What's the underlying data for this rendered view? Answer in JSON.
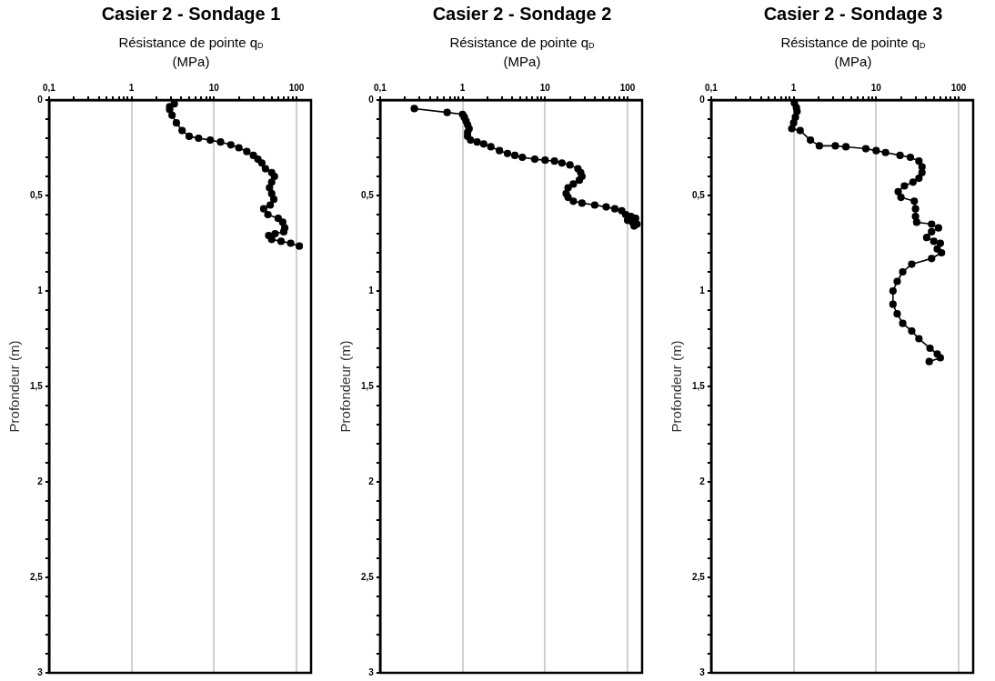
{
  "chart_data": [
    {
      "type": "line",
      "title": "Casier 2 - Sondage 1",
      "xlabel": "Résistance de pointe q$_{D}$ (MPa)",
      "ylabel": "Profondeur (m)",
      "log": "x",
      "grid": "x",
      "marker": "circle",
      "line_style": "solid",
      "legend": false,
      "xlim": [
        0.1,
        150
      ],
      "ylim": [
        3,
        0
      ],
      "xticks": [
        {
          "value": 0.1,
          "label": "0,1"
        },
        {
          "value": 0.2,
          "label": null
        },
        {
          "value": 0.3,
          "label": null
        },
        {
          "value": 0.4,
          "label": null
        },
        {
          "value": 0.5,
          "label": null
        },
        {
          "value": 0.6,
          "label": null
        },
        {
          "value": 0.7,
          "label": null
        },
        {
          "value": 0.8,
          "label": null
        },
        {
          "value": 0.9,
          "label": null
        },
        1,
        {
          "value": 2,
          "label": null
        },
        {
          "value": 3,
          "label": null
        },
        {
          "value": 4,
          "label": null
        },
        {
          "value": 5,
          "label": null
        },
        {
          "value": 6,
          "label": null
        },
        {
          "value": 7,
          "label": null
        },
        {
          "value": 8,
          "label": null
        },
        {
          "value": 9,
          "label": null
        },
        10,
        {
          "value": 20,
          "label": null
        },
        {
          "value": 30,
          "label": null
        },
        {
          "value": 40,
          "label": null
        },
        {
          "value": 50,
          "label": null
        },
        {
          "value": 60,
          "label": null
        },
        {
          "value": 70,
          "label": null
        },
        {
          "value": 80,
          "label": null
        },
        {
          "value": 90,
          "label": null
        },
        100
      ],
      "yticks": [
        0,
        {
          "value": 0.1,
          "label": null
        },
        {
          "value": 0.2,
          "label": null
        },
        {
          "value": 0.3,
          "label": null
        },
        {
          "value": 0.4,
          "label": null
        },
        {
          "value": 0.5,
          "label": "0,5"
        },
        {
          "value": 0.6,
          "label": null
        },
        {
          "value": 0.7,
          "label": null
        },
        {
          "value": 0.8,
          "label": null
        },
        {
          "value": 0.9,
          "label": null
        },
        1,
        {
          "value": 1.1,
          "label": null
        },
        {
          "value": 1.2,
          "label": null
        },
        {
          "value": 1.3,
          "label": null
        },
        {
          "value": 1.4,
          "label": null
        },
        {
          "value": 1.5,
          "label": "1,5"
        },
        {
          "value": 1.6,
          "label": null
        },
        {
          "value": 1.7,
          "label": null
        },
        {
          "value": 1.8,
          "label": null
        },
        {
          "value": 1.9,
          "label": null
        },
        2,
        {
          "value": 2.1,
          "label": null
        },
        {
          "value": 2.2,
          "label": null
        },
        {
          "value": 2.3,
          "label": null
        },
        {
          "value": 2.4,
          "label": null
        },
        {
          "value": 2.5,
          "label": "2,5"
        },
        {
          "value": 2.6,
          "label": null
        },
        {
          "value": 2.7,
          "label": null
        },
        {
          "value": 2.8,
          "label": null
        },
        {
          "value": 2.9,
          "label": null
        },
        3
      ],
      "series": [
        {
          "color": "#000000",
          "x": [
            3.3,
            2.9,
            2.9,
            3.1,
            3.5,
            4.1,
            5,
            6.5,
            9,
            12,
            16,
            20,
            25,
            30,
            34,
            38,
            42,
            50,
            54,
            50,
            47,
            50,
            53,
            48,
            40,
            45,
            60,
            68,
            72,
            70,
            55,
            46,
            50,
            65,
            85,
            108
          ],
          "values": [
            0.02,
            0.035,
            0.05,
            0.08,
            0.12,
            0.16,
            0.19,
            0.2,
            0.21,
            0.22,
            0.235,
            0.25,
            0.27,
            0.29,
            0.31,
            0.33,
            0.36,
            0.38,
            0.4,
            0.43,
            0.46,
            0.49,
            0.52,
            0.55,
            0.57,
            0.6,
            0.62,
            0.64,
            0.67,
            0.69,
            0.7,
            0.71,
            0.73,
            0.74,
            0.75,
            0.765
          ]
        }
      ]
    },
    {
      "type": "line",
      "title": "Casier 2 - Sondage 2",
      "xlabel": "Résistance de pointe q$_{D}$ (MPa)",
      "ylabel": "Profondeur (m)",
      "log": "x",
      "grid": "x",
      "marker": "circle",
      "line_style": "solid",
      "legend": false,
      "xlim": [
        0.1,
        150
      ],
      "ylim": [
        3,
        0
      ],
      "xticks": [
        {
          "value": 0.1,
          "label": "0,1"
        },
        {
          "value": 0.2,
          "label": null
        },
        {
          "value": 0.3,
          "label": null
        },
        {
          "value": 0.4,
          "label": null
        },
        {
          "value": 0.5,
          "label": null
        },
        {
          "value": 0.6,
          "label": null
        },
        {
          "value": 0.7,
          "label": null
        },
        {
          "value": 0.8,
          "label": null
        },
        {
          "value": 0.9,
          "label": null
        },
        1,
        {
          "value": 2,
          "label": null
        },
        {
          "value": 3,
          "label": null
        },
        {
          "value": 4,
          "label": null
        },
        {
          "value": 5,
          "label": null
        },
        {
          "value": 6,
          "label": null
        },
        {
          "value": 7,
          "label": null
        },
        {
          "value": 8,
          "label": null
        },
        {
          "value": 9,
          "label": null
        },
        10,
        {
          "value": 20,
          "label": null
        },
        {
          "value": 30,
          "label": null
        },
        {
          "value": 40,
          "label": null
        },
        {
          "value": 50,
          "label": null
        },
        {
          "value": 60,
          "label": null
        },
        {
          "value": 70,
          "label": null
        },
        {
          "value": 80,
          "label": null
        },
        {
          "value": 90,
          "label": null
        },
        100
      ],
      "yticks": [
        0,
        {
          "value": 0.1,
          "label": null
        },
        {
          "value": 0.2,
          "label": null
        },
        {
          "value": 0.3,
          "label": null
        },
        {
          "value": 0.4,
          "label": null
        },
        {
          "value": 0.5,
          "label": "0,5"
        },
        {
          "value": 0.6,
          "label": null
        },
        {
          "value": 0.7,
          "label": null
        },
        {
          "value": 0.8,
          "label": null
        },
        {
          "value": 0.9,
          "label": null
        },
        1,
        {
          "value": 1.1,
          "label": null
        },
        {
          "value": 1.2,
          "label": null
        },
        {
          "value": 1.3,
          "label": null
        },
        {
          "value": 1.4,
          "label": null
        },
        {
          "value": 1.5,
          "label": "1,5"
        },
        {
          "value": 1.6,
          "label": null
        },
        {
          "value": 1.7,
          "label": null
        },
        {
          "value": 1.8,
          "label": null
        },
        {
          "value": 1.9,
          "label": null
        },
        2,
        {
          "value": 2.1,
          "label": null
        },
        {
          "value": 2.2,
          "label": null
        },
        {
          "value": 2.3,
          "label": null
        },
        {
          "value": 2.4,
          "label": null
        },
        {
          "value": 2.5,
          "label": "2,5"
        },
        {
          "value": 2.6,
          "label": null
        },
        {
          "value": 2.7,
          "label": null
        },
        {
          "value": 2.8,
          "label": null
        },
        {
          "value": 2.9,
          "label": null
        },
        3
      ],
      "series": [
        {
          "color": "#000000",
          "x": [
            0.26,
            0.65,
            1.0,
            1.05,
            1.1,
            1.15,
            1.2,
            1.15,
            1.15,
            1.25,
            1.5,
            1.8,
            2.2,
            2.8,
            3.5,
            4.3,
            5.3,
            7.5,
            10,
            13,
            16,
            20,
            25,
            27,
            28,
            26,
            22,
            19,
            18,
            19,
            22,
            28,
            40,
            55,
            70,
            85,
            95,
            110,
            125,
            100,
            115,
            130,
            120
          ],
          "values": [
            0.045,
            0.065,
            0.075,
            0.09,
            0.11,
            0.13,
            0.15,
            0.17,
            0.19,
            0.21,
            0.22,
            0.23,
            0.245,
            0.265,
            0.28,
            0.29,
            0.3,
            0.31,
            0.315,
            0.32,
            0.33,
            0.34,
            0.36,
            0.38,
            0.4,
            0.42,
            0.44,
            0.46,
            0.49,
            0.51,
            0.53,
            0.54,
            0.55,
            0.56,
            0.57,
            0.58,
            0.6,
            0.61,
            0.62,
            0.63,
            0.64,
            0.65,
            0.66
          ]
        }
      ]
    },
    {
      "type": "line",
      "title": "Casier 2 - Sondage 3",
      "xlabel": "Résistance de pointe q$_{D}$ (MPa)",
      "ylabel": "Profondeur (m)",
      "log": "x",
      "grid": "x",
      "marker": "circle",
      "line_style": "solid",
      "legend": false,
      "xlim": [
        0.1,
        150
      ],
      "ylim": [
        3,
        0
      ],
      "xticks": [
        {
          "value": 0.1,
          "label": "0,1"
        },
        {
          "value": 0.2,
          "label": null
        },
        {
          "value": 0.3,
          "label": null
        },
        {
          "value": 0.4,
          "label": null
        },
        {
          "value": 0.5,
          "label": null
        },
        {
          "value": 0.6,
          "label": null
        },
        {
          "value": 0.7,
          "label": null
        },
        {
          "value": 0.8,
          "label": null
        },
        {
          "value": 0.9,
          "label": null
        },
        1,
        {
          "value": 2,
          "label": null
        },
        {
          "value": 3,
          "label": null
        },
        {
          "value": 4,
          "label": null
        },
        {
          "value": 5,
          "label": null
        },
        {
          "value": 6,
          "label": null
        },
        {
          "value": 7,
          "label": null
        },
        {
          "value": 8,
          "label": null
        },
        {
          "value": 9,
          "label": null
        },
        10,
        {
          "value": 20,
          "label": null
        },
        {
          "value": 30,
          "label": null
        },
        {
          "value": 40,
          "label": null
        },
        {
          "value": 50,
          "label": null
        },
        {
          "value": 60,
          "label": null
        },
        {
          "value": 70,
          "label": null
        },
        {
          "value": 80,
          "label": null
        },
        {
          "value": 90,
          "label": null
        },
        100
      ],
      "yticks": [
        0,
        {
          "value": 0.1,
          "label": null
        },
        {
          "value": 0.2,
          "label": null
        },
        {
          "value": 0.3,
          "label": null
        },
        {
          "value": 0.4,
          "label": null
        },
        {
          "value": 0.5,
          "label": "0,5"
        },
        {
          "value": 0.6,
          "label": null
        },
        {
          "value": 0.7,
          "label": null
        },
        {
          "value": 0.8,
          "label": null
        },
        {
          "value": 0.9,
          "label": null
        },
        1,
        {
          "value": 1.1,
          "label": null
        },
        {
          "value": 1.2,
          "label": null
        },
        {
          "value": 1.3,
          "label": null
        },
        {
          "value": 1.4,
          "label": null
        },
        {
          "value": 1.5,
          "label": "1,5"
        },
        {
          "value": 1.6,
          "label": null
        },
        {
          "value": 1.7,
          "label": null
        },
        {
          "value": 1.8,
          "label": null
        },
        {
          "value": 1.9,
          "label": null
        },
        2,
        {
          "value": 2.1,
          "label": null
        },
        {
          "value": 2.2,
          "label": null
        },
        {
          "value": 2.3,
          "label": null
        },
        {
          "value": 2.4,
          "label": null
        },
        {
          "value": 2.5,
          "label": "2,5"
        },
        {
          "value": 2.6,
          "label": null
        },
        {
          "value": 2.7,
          "label": null
        },
        {
          "value": 2.8,
          "label": null
        },
        {
          "value": 2.9,
          "label": null
        },
        3
      ],
      "series": [
        {
          "color": "#000000",
          "x": [
            1.02,
            1.08,
            1.1,
            1.05,
            1.0,
            0.95,
            1.2,
            1.6,
            2.05,
            3.2,
            4.3,
            7.5,
            10,
            13,
            19.5,
            26,
            33,
            36,
            36,
            33,
            28,
            22,
            18.5,
            20,
            29,
            30,
            30,
            31,
            47,
            57,
            47,
            41,
            50,
            60,
            55,
            62,
            47,
            27,
            21,
            18,
            16,
            16,
            18,
            21,
            27,
            33,
            45,
            55,
            60,
            44
          ],
          "values": [
            0.015,
            0.04,
            0.06,
            0.09,
            0.12,
            0.15,
            0.16,
            0.21,
            0.24,
            0.24,
            0.245,
            0.255,
            0.265,
            0.275,
            0.29,
            0.3,
            0.32,
            0.35,
            0.38,
            0.41,
            0.43,
            0.45,
            0.48,
            0.51,
            0.53,
            0.57,
            0.61,
            0.64,
            0.65,
            0.67,
            0.69,
            0.72,
            0.74,
            0.75,
            0.78,
            0.8,
            0.83,
            0.86,
            0.9,
            0.95,
            1.0,
            1.07,
            1.12,
            1.17,
            1.21,
            1.25,
            1.3,
            1.33,
            1.35,
            1.37
          ]
        }
      ]
    }
  ]
}
